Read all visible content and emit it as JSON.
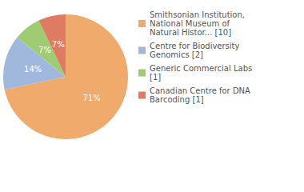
{
  "chart_data": {
    "type": "pie",
    "categories": [
      "Smithsonian Institution, National Museum of Natural Histor... [10]",
      "Centre for Biodiversity Genomics [2]",
      "Generic Commercial Labs [1]",
      "Canadian Centre for DNA Barcoding [1]"
    ],
    "values": [
      71,
      14,
      7,
      7
    ],
    "value_labels": [
      "71%",
      "14%",
      "7%",
      "7%"
    ],
    "colors": [
      "#f0aa6c",
      "#a0b8dc",
      "#9fcb72",
      "#e07b63"
    ],
    "data_labels": true,
    "legend": "right"
  }
}
